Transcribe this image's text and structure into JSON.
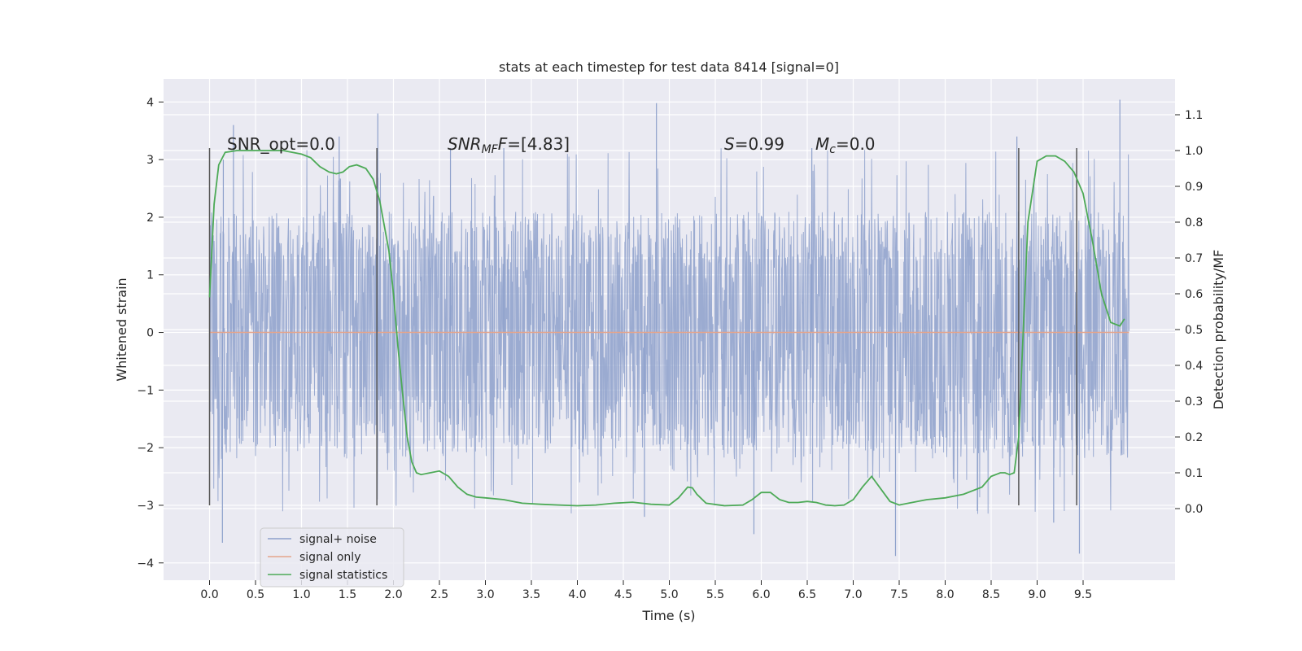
{
  "chart_data": {
    "type": "line",
    "title": "stats at each timestep for test data 8414 [signal=0]",
    "xlabel": "Time (s)",
    "ylabel": "Whitened strain",
    "y2label": "Detection probability/MF",
    "xlim": [
      -0.5,
      10.5
    ],
    "ylim": [
      -4.3,
      4.4
    ],
    "y2lim": [
      -0.2,
      1.2
    ],
    "x_ticks": [
      "0.0",
      "0.5",
      "1.0",
      "1.5",
      "2.0",
      "2.5",
      "3.0",
      "3.5",
      "4.0",
      "4.5",
      "5.0",
      "5.5",
      "6.0",
      "6.5",
      "7.0",
      "7.5",
      "8.0",
      "8.5",
      "9.0",
      "9.5"
    ],
    "y_ticks": [
      "−4",
      "−3",
      "−2",
      "−1",
      "0",
      "1",
      "2",
      "3",
      "4"
    ],
    "y2_ticks": [
      "0.0",
      "0.1",
      "0.2",
      "0.3",
      "0.4",
      "0.5",
      "0.6",
      "0.7",
      "0.8",
      "0.9",
      "1.0",
      "1.1"
    ],
    "grid": true,
    "legend_position": "lower-left",
    "annotations": {
      "snr_opt": "SNR_opt=0.0",
      "snr_mf_main": "SNR",
      "snr_mf_sub": "MF",
      "snr_mf_rest": "=[4.83]",
      "s_main": "S",
      "s_rest": "=0.99",
      "mc_main": "M",
      "mc_sub": "c",
      "mc_rest": "=0.0"
    },
    "vertical_markers_x": [
      0.0,
      1.82,
      8.8,
      9.43
    ],
    "vertical_markers_yrange": [
      -3.0,
      3.2
    ],
    "series": [
      {
        "name": "signal+ noise",
        "color": "#8da0cb",
        "kind": "noise",
        "x_range": [
          0.0,
          10.0
        ],
        "band_inner": [
          -1.15,
          1.35
        ],
        "band_outer": [
          -2.0,
          2.0
        ],
        "extremes": [
          {
            "x": 0.15,
            "y": 3.0
          },
          {
            "x": 0.26,
            "y": 3.6
          },
          {
            "x": 1.41,
            "y": 3.4
          },
          {
            "x": 1.83,
            "y": 3.8
          },
          {
            "x": 4.86,
            "y": 3.98
          },
          {
            "x": 8.78,
            "y": 3.4
          },
          {
            "x": 9.9,
            "y": 4.04
          },
          {
            "x": 0.14,
            "y": -3.65
          },
          {
            "x": 5.92,
            "y": -3.5
          },
          {
            "x": 7.46,
            "y": -3.88
          },
          {
            "x": 9.46,
            "y": -3.84
          },
          {
            "x": 9.18,
            "y": -3.3
          },
          {
            "x": 4.73,
            "y": -3.2
          },
          {
            "x": 3.2,
            "y": 3.2
          },
          {
            "x": 6.55,
            "y": 3.2
          },
          {
            "x": 2.62,
            "y": 3.2
          },
          {
            "x": 8.35,
            "y": -3.1
          }
        ]
      },
      {
        "name": "signal only",
        "color": "#e5a48b",
        "x": [
          0.0,
          10.0
        ],
        "y": [
          0.0,
          0.0
        ]
      },
      {
        "name": "signal statistics",
        "color": "#4daa57",
        "axis": "y2",
        "x": [
          0.0,
          0.05,
          0.1,
          0.17,
          0.3,
          0.5,
          0.8,
          1.0,
          1.1,
          1.2,
          1.3,
          1.38,
          1.45,
          1.52,
          1.6,
          1.7,
          1.78,
          1.85,
          1.95,
          2.0,
          2.05,
          2.1,
          2.15,
          2.2,
          2.25,
          2.3,
          2.4,
          2.5,
          2.6,
          2.7,
          2.8,
          2.9,
          3.0,
          3.2,
          3.4,
          3.6,
          3.8,
          4.0,
          4.2,
          4.4,
          4.6,
          4.8,
          5.0,
          5.1,
          5.2,
          5.25,
          5.3,
          5.4,
          5.6,
          5.8,
          5.9,
          6.0,
          6.1,
          6.2,
          6.3,
          6.4,
          6.5,
          6.6,
          6.7,
          6.8,
          6.9,
          7.0,
          7.1,
          7.2,
          7.3,
          7.4,
          7.5,
          7.6,
          7.8,
          8.0,
          8.2,
          8.4,
          8.5,
          8.6,
          8.65,
          8.7,
          8.75,
          8.8,
          8.85,
          8.9,
          9.0,
          9.1,
          9.2,
          9.3,
          9.4,
          9.5,
          9.6,
          9.7,
          9.8,
          9.9,
          9.95
        ],
        "y": [
          0.59,
          0.85,
          0.96,
          0.995,
          1.0,
          1.0,
          1.0,
          0.99,
          0.98,
          0.955,
          0.94,
          0.935,
          0.94,
          0.955,
          0.96,
          0.95,
          0.92,
          0.86,
          0.72,
          0.6,
          0.45,
          0.32,
          0.2,
          0.13,
          0.1,
          0.095,
          0.1,
          0.105,
          0.09,
          0.06,
          0.04,
          0.032,
          0.03,
          0.025,
          0.015,
          0.012,
          0.01,
          0.008,
          0.01,
          0.015,
          0.018,
          0.012,
          0.01,
          0.03,
          0.06,
          0.058,
          0.04,
          0.015,
          0.008,
          0.01,
          0.025,
          0.045,
          0.045,
          0.025,
          0.017,
          0.017,
          0.02,
          0.017,
          0.01,
          0.008,
          0.01,
          0.025,
          0.06,
          0.09,
          0.055,
          0.02,
          0.01,
          0.015,
          0.025,
          0.03,
          0.04,
          0.06,
          0.09,
          0.1,
          0.1,
          0.095,
          0.1,
          0.2,
          0.5,
          0.8,
          0.97,
          0.985,
          0.985,
          0.97,
          0.94,
          0.88,
          0.75,
          0.6,
          0.52,
          0.51,
          0.53
        ]
      }
    ]
  }
}
